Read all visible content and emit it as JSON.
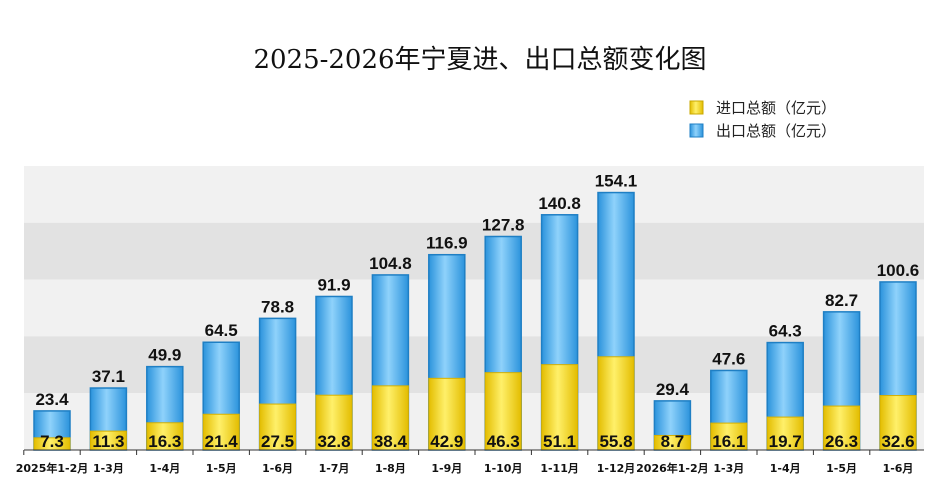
{
  "chart_data": {
    "type": "bar",
    "title": "2025-2026年宁夏进、出口总额变化图",
    "categories": [
      "2025年1-2月",
      "1-3月",
      "1-4月",
      "1-5月",
      "1-6月",
      "1-7月",
      "1-8月",
      "1-9月",
      "1-10月",
      "1-11月",
      "1-12月",
      "2026年1-2月",
      "1-3月",
      "1-4月",
      "1-5月",
      "1-6月"
    ],
    "series": [
      {
        "name": "进口总额（亿元）",
        "color": "#f5d300",
        "values": [
          7.3,
          11.3,
          16.3,
          21.4,
          27.5,
          32.8,
          38.4,
          42.9,
          46.3,
          51.1,
          55.8,
          8.7,
          16.1,
          19.7,
          26.3,
          32.6
        ]
      },
      {
        "name": "出口总额（亿元）",
        "color": "#3aa8ec",
        "values": [
          23.4,
          37.1,
          49.9,
          64.5,
          78.8,
          91.9,
          104.8,
          116.9,
          127.8,
          140.8,
          154.1,
          29.4,
          47.6,
          64.3,
          82.7,
          100.6
        ]
      }
    ],
    "ylim": [
      0,
      170
    ],
    "grid": true,
    "legend_position": "top-right",
    "xlabel": "",
    "ylabel": ""
  }
}
